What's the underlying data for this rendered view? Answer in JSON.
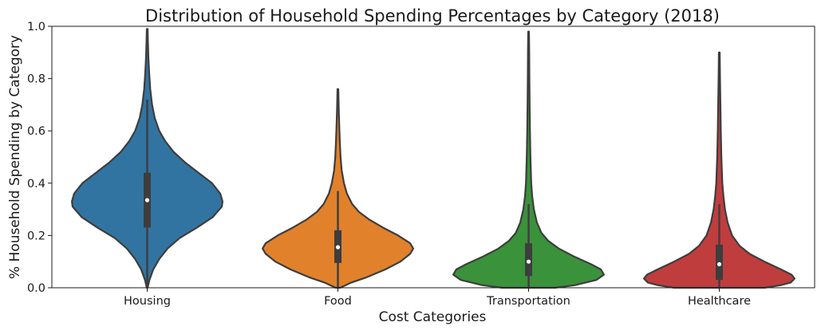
{
  "chart_data": {
    "type": "violin",
    "title": "Distribution of Household Spending Percentages by Category (2018)",
    "xlabel": "Cost Categories",
    "ylabel": "% Household Spending by Category",
    "ylim": [
      0,
      1.0
    ],
    "yticks": [
      "0.0",
      "0.2",
      "0.4",
      "0.6",
      "0.8",
      "1.0"
    ],
    "grid": false,
    "series": [
      {
        "name": "Housing",
        "color": "#3274a1",
        "min": 0.0,
        "max": 0.99,
        "q1": 0.23,
        "median": 0.335,
        "q3": 0.44,
        "whisker_low": 0.0,
        "whisker_high": 0.72,
        "density": [
          [
            0.0,
            0.005
          ],
          [
            0.03,
            0.03
          ],
          [
            0.07,
            0.08
          ],
          [
            0.11,
            0.16
          ],
          [
            0.15,
            0.27
          ],
          [
            0.19,
            0.43
          ],
          [
            0.23,
            0.66
          ],
          [
            0.27,
            0.87
          ],
          [
            0.31,
            0.99
          ],
          [
            0.33,
            1.0
          ],
          [
            0.36,
            0.97
          ],
          [
            0.4,
            0.86
          ],
          [
            0.44,
            0.68
          ],
          [
            0.48,
            0.5
          ],
          [
            0.52,
            0.35
          ],
          [
            0.56,
            0.24
          ],
          [
            0.6,
            0.16
          ],
          [
            0.65,
            0.1
          ],
          [
            0.7,
            0.065
          ],
          [
            0.76,
            0.04
          ],
          [
            0.82,
            0.026
          ],
          [
            0.88,
            0.016
          ],
          [
            0.94,
            0.01
          ],
          [
            0.99,
            0.005
          ]
        ]
      },
      {
        "name": "Food",
        "color": "#e1812c",
        "min": 0.0,
        "max": 0.76,
        "q1": 0.095,
        "median": 0.155,
        "q3": 0.22,
        "whisker_low": 0.0,
        "whisker_high": 0.37,
        "density": [
          [
            0.0,
            0.03
          ],
          [
            0.02,
            0.18
          ],
          [
            0.04,
            0.38
          ],
          [
            0.07,
            0.63
          ],
          [
            0.1,
            0.83
          ],
          [
            0.13,
            0.96
          ],
          [
            0.15,
            1.0
          ],
          [
            0.17,
            0.96
          ],
          [
            0.2,
            0.8
          ],
          [
            0.23,
            0.6
          ],
          [
            0.26,
            0.42
          ],
          [
            0.29,
            0.28
          ],
          [
            0.32,
            0.19
          ],
          [
            0.36,
            0.12
          ],
          [
            0.4,
            0.08
          ],
          [
            0.45,
            0.05
          ],
          [
            0.5,
            0.035
          ],
          [
            0.56,
            0.025
          ],
          [
            0.62,
            0.018
          ],
          [
            0.68,
            0.012
          ],
          [
            0.76,
            0.005
          ]
        ]
      },
      {
        "name": "Transportation",
        "color": "#3a923a",
        "min": 0.0,
        "max": 0.98,
        "q1": 0.045,
        "median": 0.1,
        "q3": 0.17,
        "whisker_low": 0.0,
        "whisker_high": 0.32,
        "density": [
          [
            0.0,
            0.35
          ],
          [
            0.01,
            0.62
          ],
          [
            0.03,
            0.9
          ],
          [
            0.05,
            1.0
          ],
          [
            0.07,
            0.96
          ],
          [
            0.09,
            0.83
          ],
          [
            0.12,
            0.6
          ],
          [
            0.15,
            0.4
          ],
          [
            0.18,
            0.26
          ],
          [
            0.21,
            0.17
          ],
          [
            0.25,
            0.11
          ],
          [
            0.3,
            0.07
          ],
          [
            0.35,
            0.048
          ],
          [
            0.4,
            0.035
          ],
          [
            0.5,
            0.024
          ],
          [
            0.6,
            0.018
          ],
          [
            0.7,
            0.014
          ],
          [
            0.8,
            0.011
          ],
          [
            0.9,
            0.008
          ],
          [
            0.98,
            0.005
          ]
        ]
      },
      {
        "name": "Healthcare",
        "color": "#c03d3e",
        "min": 0.0,
        "max": 0.9,
        "q1": 0.03,
        "median": 0.09,
        "q3": 0.165,
        "whisker_low": 0.0,
        "whisker_high": 0.32,
        "density": [
          [
            0.0,
            0.6
          ],
          [
            0.01,
            0.82
          ],
          [
            0.02,
            0.95
          ],
          [
            0.035,
            1.0
          ],
          [
            0.05,
            0.96
          ],
          [
            0.07,
            0.82
          ],
          [
            0.1,
            0.6
          ],
          [
            0.13,
            0.4
          ],
          [
            0.16,
            0.27
          ],
          [
            0.2,
            0.17
          ],
          [
            0.25,
            0.11
          ],
          [
            0.3,
            0.075
          ],
          [
            0.35,
            0.055
          ],
          [
            0.4,
            0.04
          ],
          [
            0.5,
            0.028
          ],
          [
            0.6,
            0.02
          ],
          [
            0.7,
            0.015
          ],
          [
            0.8,
            0.01
          ],
          [
            0.9,
            0.005
          ]
        ]
      }
    ]
  }
}
